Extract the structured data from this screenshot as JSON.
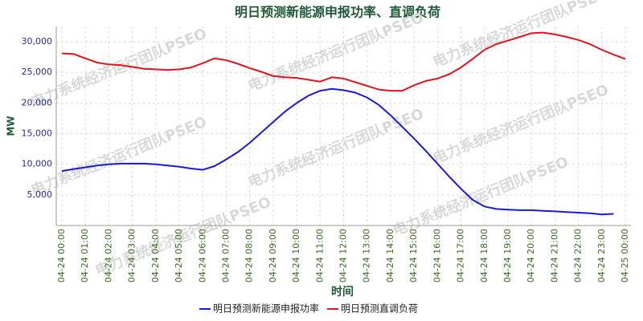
{
  "chart_data": {
    "type": "line",
    "title": "明日预测新能源申报功率、直调负荷",
    "y_label": "MW",
    "x_label": "时间",
    "watermark": "电力系统经济运行团队PSEO",
    "categories": [
      "04-24 00:00",
      null,
      "04-24 01:00",
      null,
      "04-24 02:00",
      null,
      "04-24 03:00",
      null,
      "04-24 04:00",
      null,
      "04-24 05:00",
      null,
      "04-24 06:00",
      null,
      "04-24 07:00",
      null,
      "04-24 08:00",
      null,
      "04-24 09:00",
      null,
      "04-24 10:00",
      null,
      "04-24 11:00",
      null,
      "04-24 12:00",
      null,
      "04-24 13:00",
      null,
      "04-24 14:00",
      null,
      "04-24 15:00",
      null,
      "04-24 16:00",
      null,
      "04-24 17:00",
      null,
      "04-24 18:00",
      null,
      "04-24 19:00",
      null,
      "04-24 20:00",
      null,
      "04-24 21:00",
      null,
      "04-24 22:00",
      null,
      "04-24 23:00",
      null,
      "04-25 00:00"
    ],
    "series": [
      {
        "name": "明日预测新能源申报功率",
        "color": "#1a1adb",
        "values": [
          8900,
          9200,
          9500,
          9800,
          10000,
          10100,
          10100,
          10100,
          10000,
          9800,
          9600,
          9300,
          9100,
          9700,
          10800,
          12000,
          13500,
          15200,
          16900,
          18600,
          20000,
          21200,
          22000,
          22300,
          22100,
          21700,
          20900,
          19700,
          18000,
          16100,
          14200,
          12200,
          10100,
          8000,
          6000,
          4200,
          3100,
          2700,
          2600,
          2500,
          2500,
          2400,
          2300,
          2200,
          2100,
          2000,
          1800,
          1900,
          null
        ]
      },
      {
        "name": "明日预测直调负荷",
        "color": "#e0141e",
        "values": [
          28100,
          28000,
          27300,
          26600,
          26300,
          26200,
          25900,
          25600,
          25500,
          25400,
          25500,
          25800,
          26500,
          27300,
          27000,
          26400,
          25700,
          25100,
          24400,
          24200,
          24100,
          23800,
          23500,
          24200,
          24000,
          23400,
          22800,
          22200,
          22000,
          22000,
          22900,
          23600,
          24000,
          24700,
          25800,
          27200,
          28700,
          29600,
          30200,
          30800,
          31400,
          31500,
          31200,
          30800,
          30300,
          29600,
          28700,
          27900,
          27200
        ]
      }
    ],
    "ylim": [
      0,
      32500
    ],
    "yticks": [
      {
        "value": 5000,
        "label": "5,000"
      },
      {
        "value": 10000,
        "label": "10,000"
      },
      {
        "value": 15000,
        "label": "15,000"
      },
      {
        "value": 20000,
        "label": "20,000"
      },
      {
        "value": 25000,
        "label": "25,000"
      },
      {
        "value": 30000,
        "label": "30,000"
      }
    ],
    "grid": true,
    "legend": "bottom"
  }
}
